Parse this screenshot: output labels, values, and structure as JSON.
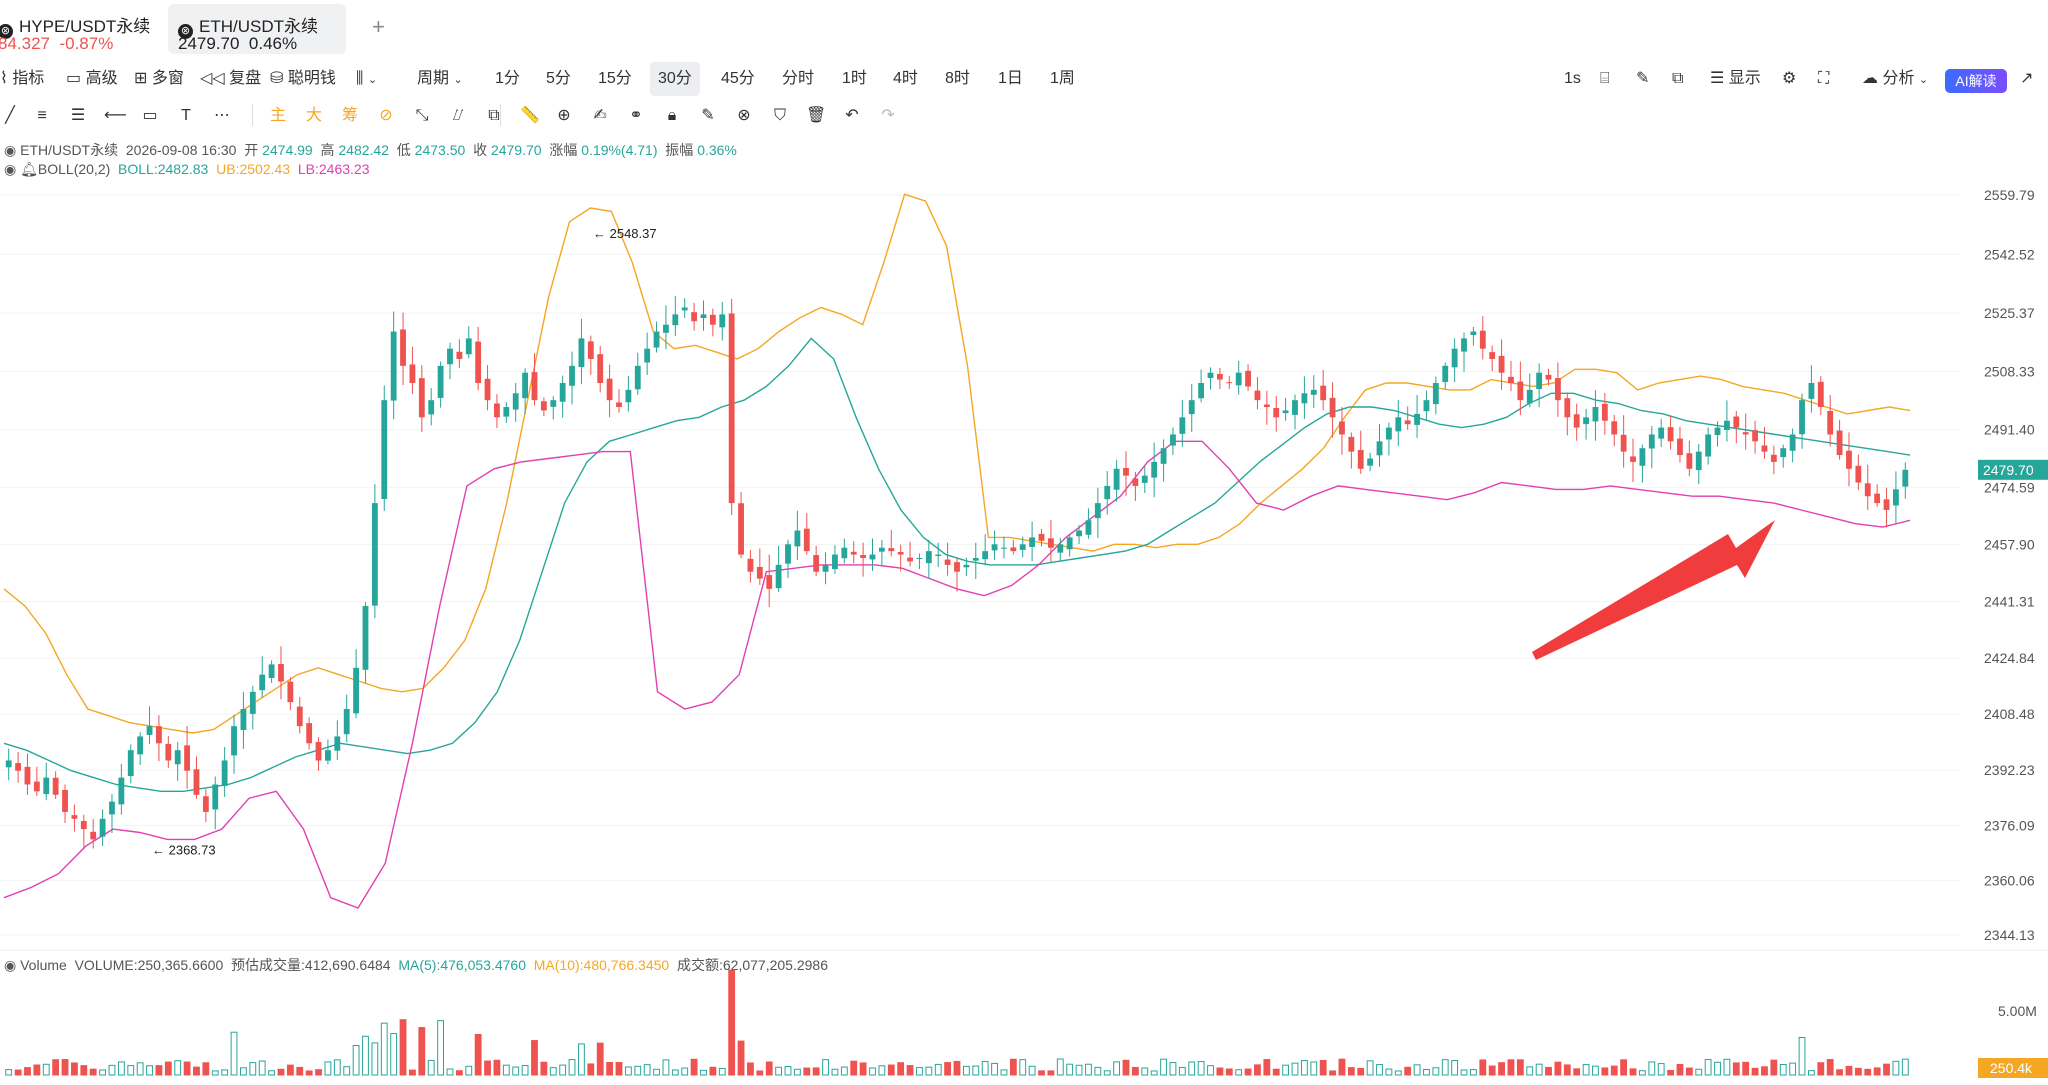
{
  "tabs": [
    {
      "name": "HYPE/USDT永续",
      "price": "84.327",
      "change": "-0.87%",
      "active": false
    },
    {
      "name": "ETH/USDT永续",
      "price": "2479.70",
      "change": "0.46%",
      "active": true
    }
  ],
  "toolbar": {
    "indicators": "指标",
    "advanced": "高级",
    "multi_window": "多窗",
    "replay": "复盘",
    "smart_money": "聪明钱",
    "period": "周期",
    "periods": [
      "1分",
      "5分",
      "15分",
      "30分",
      "45分",
      "分时",
      "1时",
      "4时",
      "8时",
      "1日",
      "1周"
    ],
    "active_period": "30分",
    "seconds": "1s",
    "display": "显示",
    "analysis": "分析",
    "ai_label": "AI解读"
  },
  "drawing_tools": {
    "main": "主",
    "big": "大",
    "chip": "筹"
  },
  "info_bar": {
    "symbol": "ETH/USDT永续",
    "time": "2026-09-08 16:30",
    "open_label": "开",
    "open": "2474.99",
    "high_label": "高",
    "high": "2482.42",
    "low_label": "低",
    "low": "2473.50",
    "close_label": "收",
    "close": "2479.70",
    "change_label": "涨幅",
    "change": "0.19%(4.71)",
    "amplitude_label": "振幅",
    "amplitude": "0.36%"
  },
  "boll_bar": {
    "name": "BOLL(20,2)",
    "mid": "BOLL:2482.83",
    "ub": "UB:2502.43",
    "lb": "LB:2463.23"
  },
  "volume_bar": {
    "name": "Volume",
    "volume": "VOLUME:250,365.6600",
    "est": "预估成交量:412,690.6484",
    "ma5": "MA(5):476,053.4760",
    "ma10": "MA(10):480,766.3450",
    "turnover": "成交额:62,077,205.2986"
  },
  "colors": {
    "up": "#26a69a",
    "down": "#ef5350",
    "boll_mid": "#26a69a",
    "boll_ub": "#f5a623",
    "boll_lb": "#e040b0",
    "arrow": "#f03c3c"
  },
  "chart_data": {
    "type": "candlestick",
    "symbol": "ETH/USDT永续",
    "interval": "30分",
    "y_ticks": [
      "2559.79",
      "2542.52",
      "2525.37",
      "2508.33",
      "2491.40",
      "2474.59",
      "2457.90",
      "2441.31",
      "2424.84",
      "2408.48",
      "2392.23",
      "2376.09",
      "2360.06",
      "2344.13"
    ],
    "ylim": [
      2344.13,
      2559.79
    ],
    "current_price": "2479.70",
    "high_marker": "2548.37",
    "low_marker": "2368.73",
    "volume_ticks": [
      "5.00M"
    ],
    "current_volume": "250.4k",
    "close_path": [
      2395,
      2392,
      2388,
      2386,
      2390,
      2385,
      2380,
      2378,
      2375,
      2372,
      2378,
      2383,
      2390,
      2398,
      2402,
      2405,
      2400,
      2395,
      2398,
      2392,
      2385,
      2380,
      2388,
      2395,
      2405,
      2410,
      2415,
      2420,
      2423,
      2418,
      2412,
      2405,
      2400,
      2395,
      2398,
      2402,
      2410,
      2422,
      2440,
      2470,
      2500,
      2520,
      2510,
      2505,
      2495,
      2500,
      2510,
      2515,
      2512,
      2518,
      2505,
      2500,
      2495,
      2498,
      2502,
      2508,
      2500,
      2497,
      2500,
      2505,
      2510,
      2518,
      2512,
      2505,
      2500,
      2498,
      2503,
      2510,
      2515,
      2520,
      2522,
      2525,
      2527,
      2523,
      2525,
      2522,
      2525,
      2470,
      2455,
      2450,
      2448,
      2445,
      2452,
      2458,
      2462,
      2456,
      2450,
      2452,
      2455,
      2457,
      2455,
      2454,
      2455,
      2457,
      2456,
      2455,
      2453,
      2454,
      2456,
      2455,
      2452,
      2450,
      2452,
      2454,
      2456,
      2458,
      2457,
      2456,
      2458,
      2460,
      2459,
      2457,
      2458,
      2460,
      2462,
      2465,
      2470,
      2475,
      2480,
      2478,
      2475,
      2478,
      2482,
      2486,
      2490,
      2495,
      2500,
      2505,
      2508,
      2506,
      2505,
      2508,
      2504,
      2500,
      2498,
      2495,
      2497,
      2500,
      2502,
      2503,
      2500,
      2495,
      2490,
      2485,
      2480,
      2483,
      2488,
      2492,
      2495,
      2493,
      2496,
      2500,
      2505,
      2510,
      2515,
      2518,
      2520,
      2515,
      2512,
      2508,
      2505,
      2500,
      2503,
      2508,
      2506,
      2500,
      2495,
      2492,
      2495,
      2498,
      2494,
      2490,
      2485,
      2482,
      2486,
      2490,
      2492,
      2488,
      2484,
      2480,
      2485,
      2490,
      2492,
      2494,
      2492,
      2490,
      2488,
      2485,
      2482,
      2486,
      2490,
      2500,
      2505,
      2498,
      2490,
      2484,
      2480,
      2476,
      2472,
      2470,
      2468,
      2474,
      2479.7
    ],
    "ub_path": [
      2445,
      2440,
      2432,
      2420,
      2410,
      2408,
      2406,
      2405,
      2404,
      2403,
      2404,
      2408,
      2412,
      2416,
      2420,
      2422,
      2420,
      2418,
      2416,
      2415,
      2416,
      2422,
      2430,
      2445,
      2470,
      2500,
      2530,
      2552,
      2556,
      2555,
      2540,
      2520,
      2515,
      2516,
      2514,
      2512,
      2515,
      2520,
      2524,
      2527,
      2525,
      2522,
      2540,
      2560,
      2558,
      2545,
      2510,
      2460,
      2460,
      2459,
      2458,
      2457,
      2456,
      2458,
      2458,
      2457,
      2458,
      2458,
      2460,
      2464,
      2470,
      2475,
      2480,
      2486,
      2495,
      2503,
      2505,
      2505,
      2504,
      2503,
      2503,
      2506,
      2505,
      2504,
      2505,
      2509,
      2509,
      2508,
      2503,
      2505,
      2506,
      2507,
      2506,
      2504,
      2503,
      2502,
      2500,
      2498,
      2496,
      2497,
      2498,
      2497
    ],
    "mid_path": [
      2400,
      2398,
      2395,
      2392,
      2390,
      2388,
      2387,
      2386,
      2386,
      2387,
      2388,
      2390,
      2393,
      2396,
      2398,
      2400,
      2399,
      2398,
      2397,
      2398,
      2400,
      2406,
      2415,
      2430,
      2450,
      2470,
      2482,
      2488,
      2490,
      2492,
      2494,
      2495,
      2498,
      2500,
      2504,
      2510,
      2518,
      2512,
      2495,
      2480,
      2468,
      2460,
      2455,
      2453,
      2452,
      2452,
      2452,
      2453,
      2454,
      2455,
      2456,
      2458,
      2462,
      2466,
      2470,
      2476,
      2482,
      2487,
      2492,
      2496,
      2498,
      2498,
      2497,
      2495,
      2493,
      2492,
      2493,
      2495,
      2499,
      2502,
      2502,
      2500,
      2499,
      2497,
      2496,
      2494,
      2493,
      2492,
      2491,
      2490,
      2489,
      2488,
      2487,
      2486,
      2485,
      2484
    ],
    "lb_path": [
      2355,
      2358,
      2362,
      2370,
      2375,
      2374,
      2372,
      2372,
      2375,
      2384,
      2386,
      2375,
      2355,
      2352,
      2365,
      2400,
      2440,
      2475,
      2480,
      2482,
      2483,
      2484,
      2485,
      2485,
      2415,
      2410,
      2412,
      2420,
      2450,
      2451,
      2452,
      2452,
      2452,
      2451,
      2448,
      2445,
      2443,
      2446,
      2452,
      2460,
      2466,
      2472,
      2482,
      2488,
      2488,
      2480,
      2470,
      2468,
      2472,
      2475,
      2474,
      2473,
      2472,
      2471,
      2473,
      2476,
      2475,
      2474,
      2474,
      2475,
      2474,
      2473,
      2472,
      2472,
      2471,
      2470,
      2468,
      2466,
      2464,
      2463,
      2465
    ]
  }
}
